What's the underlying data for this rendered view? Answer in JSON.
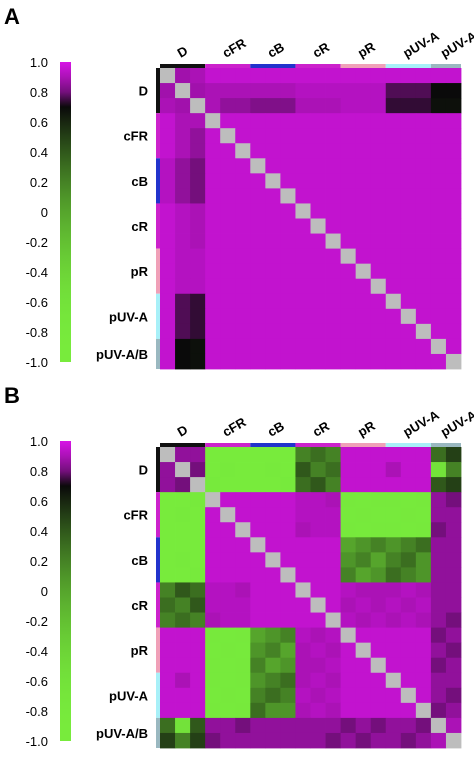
{
  "chart_data": [
    {
      "type": "heatmap",
      "panel_label": "A",
      "colorbar_ticks": [
        "1.0",
        "0.8",
        "0.6",
        "0.4",
        "0.2",
        "0",
        "-0.2",
        "-0.4",
        "-0.6",
        "-0.8",
        "-1.0"
      ],
      "colorbar_range": [
        -1.0,
        1.0
      ],
      "groups": [
        "D",
        "cFR",
        "cB",
        "cR",
        "pR",
        "pUV-A",
        "pUV-A/B"
      ],
      "group_colors": [
        "#111111",
        "#cc22cc",
        "#2233cc",
        "#cc22cc",
        "#f0a0b8",
        "#a8f0f8",
        "#9ab8c0"
      ],
      "group_sizes": [
        3,
        3,
        3,
        3,
        3,
        3,
        2
      ],
      "matrix": [
        [
          1.0,
          0.88,
          0.9,
          0.95,
          0.95,
          0.95,
          0.95,
          0.95,
          0.95,
          0.95,
          0.95,
          0.95,
          0.95,
          0.95,
          0.95,
          0.95,
          0.95,
          0.95,
          0.95,
          0.95
        ],
        [
          0.88,
          1.0,
          0.88,
          0.9,
          0.9,
          0.9,
          0.9,
          0.9,
          0.9,
          0.92,
          0.92,
          0.92,
          0.92,
          0.92,
          0.92,
          0.75,
          0.75,
          0.75,
          0.7,
          0.7
        ],
        [
          0.9,
          0.88,
          1.0,
          0.9,
          0.85,
          0.85,
          0.82,
          0.82,
          0.82,
          0.9,
          0.9,
          0.9,
          0.92,
          0.92,
          0.92,
          0.72,
          0.72,
          0.72,
          0.68,
          0.68
        ],
        [
          0.95,
          0.9,
          0.9,
          1.0,
          0.95,
          0.95,
          0.95,
          0.95,
          0.95,
          0.95,
          0.95,
          0.95,
          0.95,
          0.95,
          0.95,
          0.95,
          0.95,
          0.95,
          0.95,
          0.95
        ],
        [
          0.95,
          0.9,
          0.85,
          0.95,
          1.0,
          0.95,
          0.95,
          0.95,
          0.95,
          0.95,
          0.95,
          0.95,
          0.95,
          0.95,
          0.95,
          0.95,
          0.95,
          0.95,
          0.95,
          0.95
        ],
        [
          0.95,
          0.9,
          0.85,
          0.95,
          0.95,
          1.0,
          0.95,
          0.95,
          0.95,
          0.95,
          0.95,
          0.95,
          0.95,
          0.95,
          0.95,
          0.95,
          0.95,
          0.95,
          0.95,
          0.95
        ],
        [
          0.92,
          0.85,
          0.8,
          0.95,
          0.95,
          0.95,
          1.0,
          0.95,
          0.95,
          0.95,
          0.95,
          0.95,
          0.95,
          0.95,
          0.95,
          0.95,
          0.95,
          0.95,
          0.95,
          0.95
        ],
        [
          0.92,
          0.85,
          0.8,
          0.95,
          0.95,
          0.95,
          0.95,
          1.0,
          0.95,
          0.95,
          0.95,
          0.95,
          0.95,
          0.95,
          0.95,
          0.95,
          0.95,
          0.95,
          0.95,
          0.95
        ],
        [
          0.92,
          0.85,
          0.8,
          0.95,
          0.95,
          0.95,
          0.95,
          0.95,
          1.0,
          0.95,
          0.95,
          0.95,
          0.95,
          0.95,
          0.95,
          0.95,
          0.95,
          0.95,
          0.95,
          0.95
        ],
        [
          0.95,
          0.92,
          0.9,
          0.95,
          0.95,
          0.95,
          0.95,
          0.95,
          0.95,
          1.0,
          0.95,
          0.95,
          0.95,
          0.95,
          0.95,
          0.95,
          0.95,
          0.95,
          0.95,
          0.95
        ],
        [
          0.95,
          0.92,
          0.9,
          0.95,
          0.95,
          0.95,
          0.95,
          0.95,
          0.95,
          0.95,
          1.0,
          0.95,
          0.95,
          0.95,
          0.95,
          0.95,
          0.95,
          0.95,
          0.95,
          0.95
        ],
        [
          0.95,
          0.92,
          0.9,
          0.95,
          0.95,
          0.95,
          0.95,
          0.95,
          0.95,
          0.95,
          0.95,
          1.0,
          0.95,
          0.95,
          0.95,
          0.95,
          0.95,
          0.95,
          0.95,
          0.95
        ],
        [
          0.95,
          0.92,
          0.92,
          0.95,
          0.95,
          0.95,
          0.95,
          0.95,
          0.95,
          0.95,
          0.95,
          0.95,
          1.0,
          0.95,
          0.95,
          0.95,
          0.95,
          0.95,
          0.95,
          0.95
        ],
        [
          0.95,
          0.92,
          0.92,
          0.95,
          0.95,
          0.95,
          0.95,
          0.95,
          0.95,
          0.95,
          0.95,
          0.95,
          0.95,
          1.0,
          0.95,
          0.95,
          0.95,
          0.95,
          0.95,
          0.95
        ],
        [
          0.95,
          0.92,
          0.92,
          0.95,
          0.95,
          0.95,
          0.95,
          0.95,
          0.95,
          0.95,
          0.95,
          0.95,
          0.95,
          0.95,
          1.0,
          0.95,
          0.95,
          0.95,
          0.95,
          0.95
        ],
        [
          0.95,
          0.75,
          0.72,
          0.95,
          0.95,
          0.95,
          0.95,
          0.95,
          0.95,
          0.95,
          0.95,
          0.95,
          0.95,
          0.95,
          0.95,
          1.0,
          0.95,
          0.95,
          0.95,
          0.95
        ],
        [
          0.95,
          0.75,
          0.72,
          0.95,
          0.95,
          0.95,
          0.95,
          0.95,
          0.95,
          0.95,
          0.95,
          0.95,
          0.95,
          0.95,
          0.95,
          0.95,
          1.0,
          0.95,
          0.95,
          0.95
        ],
        [
          0.95,
          0.75,
          0.72,
          0.95,
          0.95,
          0.95,
          0.95,
          0.95,
          0.95,
          0.95,
          0.95,
          0.95,
          0.95,
          0.95,
          0.95,
          0.95,
          0.95,
          1.0,
          0.95,
          0.95
        ],
        [
          0.95,
          0.7,
          0.68,
          0.95,
          0.95,
          0.95,
          0.95,
          0.95,
          0.95,
          0.95,
          0.95,
          0.95,
          0.95,
          0.95,
          0.95,
          0.95,
          0.95,
          0.95,
          1.0,
          0.95
        ],
        [
          0.95,
          0.7,
          0.68,
          0.95,
          0.95,
          0.95,
          0.95,
          0.95,
          0.95,
          0.95,
          0.95,
          0.95,
          0.95,
          0.95,
          0.95,
          0.95,
          0.95,
          0.95,
          0.95,
          1.0
        ]
      ]
    },
    {
      "type": "heatmap",
      "panel_label": "B",
      "colorbar_ticks": [
        "1.0",
        "0.8",
        "0.6",
        "0.4",
        "0.2",
        "0",
        "-0.2",
        "-0.4",
        "-0.6",
        "-0.8",
        "-1.0"
      ],
      "colorbar_range": [
        -1.0,
        1.0
      ],
      "groups": [
        "D",
        "cFR",
        "cB",
        "cR",
        "pR",
        "pUV-A",
        "pUV-A/B"
      ],
      "group_colors": [
        "#111111",
        "#cc22cc",
        "#2233cc",
        "#cc22cc",
        "#f0a0b8",
        "#a8f0f8",
        "#9ab8c0"
      ],
      "group_sizes": [
        3,
        3,
        3,
        3,
        3,
        3,
        2
      ],
      "matrix": [
        [
          1.0,
          0.85,
          0.85,
          -0.9,
          -0.9,
          -0.9,
          -0.9,
          -0.9,
          -0.9,
          0.2,
          0.3,
          0.2,
          0.95,
          0.95,
          0.95,
          0.95,
          0.95,
          0.95,
          0.3,
          0.5
        ],
        [
          0.85,
          1.0,
          0.8,
          -0.9,
          -0.85,
          -0.9,
          -0.9,
          -0.85,
          -0.9,
          0.4,
          0.2,
          0.3,
          0.95,
          0.95,
          0.95,
          0.9,
          0.95,
          0.95,
          -0.6,
          0.2
        ],
        [
          0.85,
          0.8,
          1.0,
          -0.85,
          -0.9,
          -0.9,
          -0.9,
          -0.9,
          -0.85,
          0.3,
          0.4,
          0.2,
          0.95,
          0.95,
          0.95,
          0.95,
          0.95,
          0.95,
          0.4,
          0.5
        ],
        [
          -0.9,
          -0.9,
          -0.85,
          1.0,
          0.95,
          0.95,
          0.95,
          0.95,
          0.95,
          0.92,
          0.92,
          0.9,
          -0.8,
          -0.85,
          -0.8,
          -0.8,
          -0.85,
          -0.8,
          0.85,
          0.8
        ],
        [
          -0.9,
          -0.85,
          -0.9,
          0.95,
          1.0,
          0.95,
          0.95,
          0.95,
          0.95,
          0.92,
          0.92,
          0.92,
          -0.85,
          -0.8,
          -0.85,
          -0.85,
          -0.8,
          -0.85,
          0.85,
          0.85
        ],
        [
          -0.9,
          -0.9,
          -0.9,
          0.95,
          0.95,
          1.0,
          0.95,
          0.95,
          0.95,
          0.9,
          0.92,
          0.92,
          -0.8,
          -0.85,
          -0.8,
          -0.8,
          -0.85,
          -0.8,
          0.8,
          0.85
        ],
        [
          -0.9,
          -0.9,
          -0.9,
          0.95,
          0.95,
          0.95,
          1.0,
          0.95,
          0.95,
          0.95,
          0.95,
          0.95,
          0.0,
          0.1,
          0.2,
          0.1,
          0.2,
          0.3,
          0.85,
          0.85
        ],
        [
          -0.9,
          -0.85,
          -0.9,
          0.95,
          0.95,
          0.95,
          0.95,
          1.0,
          0.95,
          0.95,
          0.95,
          0.95,
          0.1,
          0.2,
          0.0,
          0.2,
          0.3,
          0.1,
          0.85,
          0.85
        ],
        [
          -0.9,
          -0.9,
          -0.85,
          0.95,
          0.95,
          0.95,
          0.95,
          0.95,
          1.0,
          0.95,
          0.95,
          0.95,
          0.2,
          0.0,
          0.1,
          0.3,
          0.2,
          0.1,
          0.85,
          0.85
        ],
        [
          0.2,
          0.4,
          0.3,
          0.92,
          0.92,
          0.9,
          0.95,
          0.95,
          0.95,
          1.0,
          0.95,
          0.95,
          0.92,
          0.9,
          0.9,
          0.9,
          0.92,
          0.9,
          0.85,
          0.85
        ],
        [
          0.3,
          0.2,
          0.4,
          0.92,
          0.92,
          0.92,
          0.95,
          0.95,
          0.95,
          0.95,
          1.0,
          0.95,
          0.9,
          0.92,
          0.9,
          0.92,
          0.9,
          0.92,
          0.85,
          0.85
        ],
        [
          0.2,
          0.3,
          0.2,
          0.9,
          0.92,
          0.92,
          0.95,
          0.95,
          0.95,
          0.95,
          0.95,
          1.0,
          0.92,
          0.9,
          0.92,
          0.9,
          0.92,
          0.9,
          0.85,
          0.8
        ],
        [
          0.95,
          0.95,
          0.95,
          -0.8,
          -0.85,
          -0.8,
          0.0,
          0.1,
          0.2,
          0.92,
          0.9,
          0.92,
          1.0,
          0.95,
          0.95,
          0.95,
          0.95,
          0.95,
          0.8,
          0.85
        ],
        [
          0.95,
          0.95,
          0.95,
          -0.85,
          -0.8,
          -0.85,
          0.1,
          0.2,
          0.0,
          0.9,
          0.92,
          0.9,
          0.95,
          1.0,
          0.95,
          0.95,
          0.95,
          0.95,
          0.85,
          0.8
        ],
        [
          0.95,
          0.95,
          0.95,
          -0.8,
          -0.85,
          -0.8,
          0.2,
          0.0,
          0.1,
          0.9,
          0.9,
          0.92,
          0.95,
          0.95,
          1.0,
          0.95,
          0.95,
          0.95,
          0.8,
          0.85
        ],
        [
          0.95,
          0.9,
          0.95,
          -0.8,
          -0.85,
          -0.8,
          0.1,
          0.2,
          0.3,
          0.9,
          0.92,
          0.9,
          0.95,
          0.95,
          0.95,
          1.0,
          0.95,
          0.95,
          0.85,
          0.85
        ],
        [
          0.95,
          0.95,
          0.95,
          -0.85,
          -0.8,
          -0.85,
          0.2,
          0.3,
          0.2,
          0.92,
          0.9,
          0.92,
          0.95,
          0.95,
          0.95,
          0.95,
          1.0,
          0.95,
          0.85,
          0.8
        ],
        [
          0.95,
          0.95,
          0.95,
          -0.8,
          -0.85,
          -0.8,
          0.3,
          0.1,
          0.1,
          0.9,
          0.92,
          0.9,
          0.95,
          0.95,
          0.95,
          0.95,
          0.95,
          1.0,
          0.8,
          0.85
        ],
        [
          0.3,
          -0.6,
          0.4,
          0.85,
          0.85,
          0.8,
          0.85,
          0.85,
          0.85,
          0.85,
          0.85,
          0.85,
          0.8,
          0.85,
          0.8,
          0.85,
          0.85,
          0.8,
          1.0,
          0.9
        ],
        [
          0.5,
          0.2,
          0.5,
          0.8,
          0.85,
          0.85,
          0.85,
          0.85,
          0.85,
          0.85,
          0.85,
          0.8,
          0.85,
          0.8,
          0.85,
          0.85,
          0.8,
          0.85,
          0.9,
          1.0
        ]
      ]
    }
  ]
}
